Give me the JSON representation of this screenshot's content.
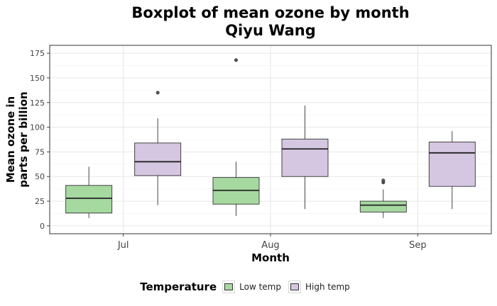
{
  "chart_data": {
    "type": "boxplot",
    "title": "Boxplot of mean ozone by month",
    "subtitle": "Qiyu Wang",
    "xlabel": "Month",
    "ylabel_lines": [
      "Mean ozone in",
      "parts per billion"
    ],
    "categories": [
      "Jul",
      "Aug",
      "Sep"
    ],
    "ylim": [
      -8,
      183
    ],
    "yticks": [
      0,
      25,
      50,
      75,
      100,
      125,
      150,
      175
    ],
    "grid": true,
    "legend": {
      "title": "Temperature",
      "position": "bottom",
      "items": [
        "Low temp",
        "High temp"
      ]
    },
    "series": [
      {
        "name": "Low temp",
        "color": "#A6D9A0",
        "boxes": [
          {
            "category": "Jul",
            "whisker_low": 8,
            "q1": 13,
            "median": 28,
            "q3": 41,
            "whisker_high": 60,
            "outliers": []
          },
          {
            "category": "Aug",
            "whisker_low": 10,
            "q1": 22,
            "median": 36,
            "q3": 49,
            "whisker_high": 65,
            "outliers": [
              168
            ]
          },
          {
            "category": "Sep",
            "whisker_low": 8,
            "q1": 14,
            "median": 21,
            "q3": 25,
            "whisker_high": 37,
            "outliers": [
              44,
              46
            ]
          }
        ]
      },
      {
        "name": "High temp",
        "color": "#D5C6E1",
        "boxes": [
          {
            "category": "Jul",
            "whisker_low": 21,
            "q1": 51,
            "median": 65,
            "q3": 84,
            "whisker_high": 109,
            "outliers": [
              135
            ]
          },
          {
            "category": "Aug",
            "whisker_low": 17,
            "q1": 50,
            "median": 78,
            "q3": 88,
            "whisker_high": 122,
            "outliers": []
          },
          {
            "category": "Sep",
            "whisker_low": 17,
            "q1": 40,
            "median": 74,
            "q3": 85,
            "whisker_high": 96,
            "outliers": []
          }
        ]
      }
    ]
  }
}
